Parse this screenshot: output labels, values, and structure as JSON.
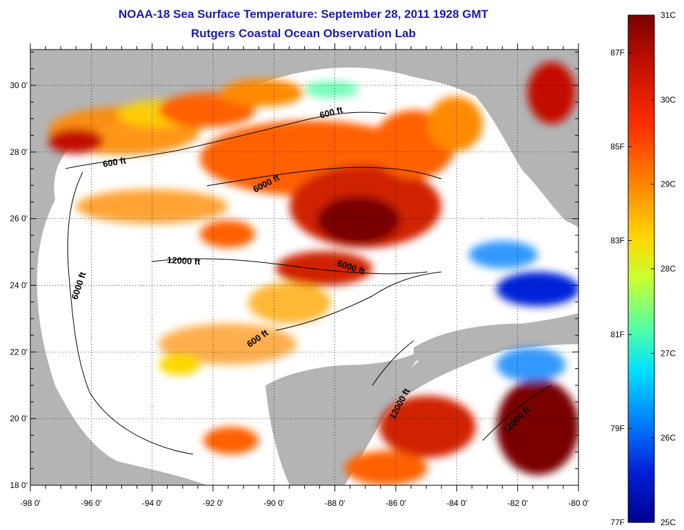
{
  "title": {
    "line1": "NOAA-18 Sea Surface Temperature:  September 28, 2011 1928 GMT",
    "line2": "Rutgers Coastal Ocean Observation Lab"
  },
  "axes": {
    "longitude_ticks": [
      "-98 0'",
      "-96 0'",
      "-94 0'",
      "-92 0'",
      "-90 0'",
      "-88 0'",
      "-86 0'",
      "-84 0'",
      "-82 0'",
      "-80 0'"
    ],
    "latitude_ticks": [
      "30 0'",
      "28 0'",
      "26 0'",
      "24 0'",
      "22 0'",
      "20 0'",
      "18 0'"
    ]
  },
  "contour_labels": [
    {
      "text": "600 ft",
      "role": "north-shelf-east"
    },
    {
      "text": "600 ft",
      "role": "north-shelf-west"
    },
    {
      "text": "6000 ft",
      "role": "north-slope"
    },
    {
      "text": "12000 ft",
      "role": "abyssal-plain"
    },
    {
      "text": "6000 ft",
      "role": "west-slope"
    },
    {
      "text": "6000 ft",
      "role": "central-slope"
    },
    {
      "text": "600 ft",
      "role": "campeche-shelf"
    },
    {
      "text": "12000 ft",
      "role": "caribbean-west"
    },
    {
      "text": "12000 ft",
      "role": "caribbean-east"
    }
  ],
  "colorbar": {
    "fahrenheit_labels": [
      "87F",
      "85F",
      "83F",
      "81F",
      "79F",
      "77F"
    ],
    "celsius_labels": [
      "31C",
      "30C",
      "29C",
      "28C",
      "27C",
      "26C",
      "25C"
    ],
    "colors": [
      "#7a0000",
      "#c41000",
      "#ff3000",
      "#ff8a00",
      "#ffd800",
      "#c8ff30",
      "#50ffa8",
      "#00e0ff",
      "#0080ff",
      "#0020d8",
      "#000090"
    ]
  },
  "colors": {
    "land": "#b4b4b4",
    "ocean_no_data": "#ffffff",
    "title": "#1a1aa6"
  }
}
